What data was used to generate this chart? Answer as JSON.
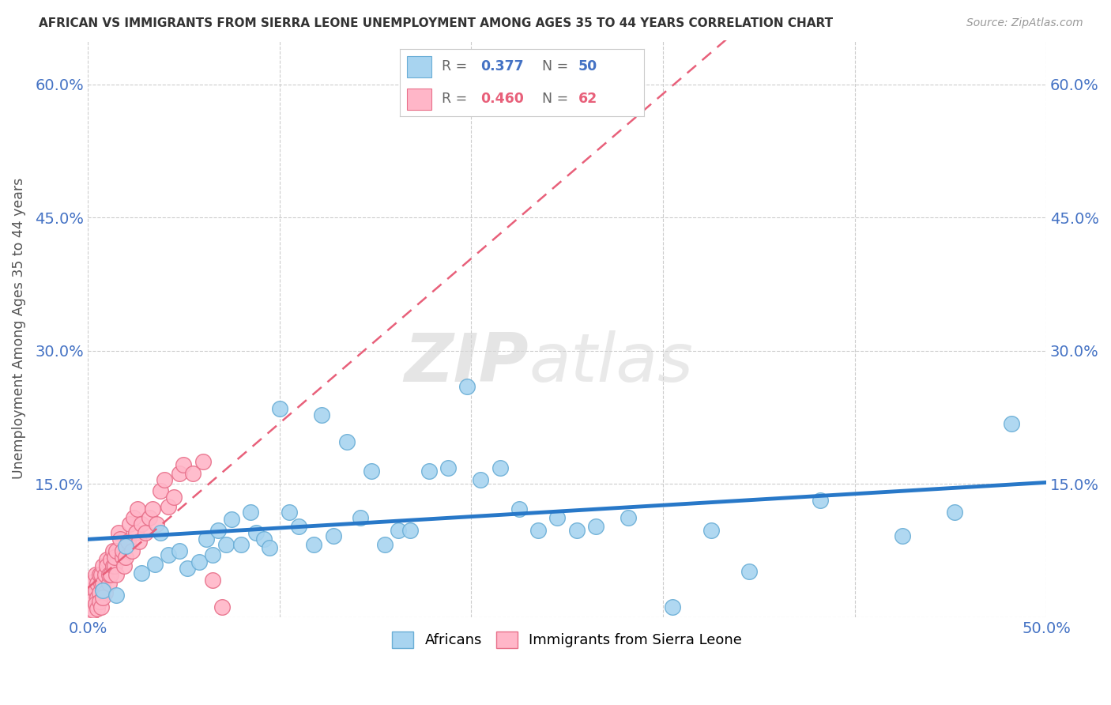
{
  "title": "AFRICAN VS IMMIGRANTS FROM SIERRA LEONE UNEMPLOYMENT AMONG AGES 35 TO 44 YEARS CORRELATION CHART",
  "source": "Source: ZipAtlas.com",
  "ylabel": "Unemployment Among Ages 35 to 44 years",
  "xlim": [
    0.0,
    0.5
  ],
  "ylim": [
    0.0,
    0.65
  ],
  "xticks": [
    0.0,
    0.1,
    0.2,
    0.3,
    0.4,
    0.5
  ],
  "xtick_labels": [
    "0.0%",
    "",
    "",
    "",
    "",
    "50.0%"
  ],
  "yticks": [
    0.0,
    0.15,
    0.3,
    0.45,
    0.6
  ],
  "ytick_labels": [
    "",
    "15.0%",
    "30.0%",
    "45.0%",
    "60.0%"
  ],
  "africans_x": [
    0.008,
    0.015,
    0.02,
    0.028,
    0.035,
    0.038,
    0.042,
    0.048,
    0.052,
    0.058,
    0.062,
    0.065,
    0.068,
    0.072,
    0.075,
    0.08,
    0.085,
    0.088,
    0.092,
    0.095,
    0.1,
    0.105,
    0.11,
    0.118,
    0.122,
    0.128,
    0.135,
    0.142,
    0.148,
    0.155,
    0.162,
    0.168,
    0.178,
    0.188,
    0.198,
    0.205,
    0.215,
    0.225,
    0.235,
    0.245,
    0.255,
    0.265,
    0.282,
    0.305,
    0.325,
    0.345,
    0.382,
    0.425,
    0.452,
    0.482
  ],
  "africans_y": [
    0.03,
    0.025,
    0.08,
    0.05,
    0.06,
    0.095,
    0.07,
    0.075,
    0.055,
    0.062,
    0.088,
    0.07,
    0.098,
    0.082,
    0.11,
    0.082,
    0.118,
    0.095,
    0.088,
    0.078,
    0.235,
    0.118,
    0.102,
    0.082,
    0.228,
    0.092,
    0.198,
    0.112,
    0.165,
    0.082,
    0.098,
    0.098,
    0.165,
    0.168,
    0.26,
    0.155,
    0.168,
    0.122,
    0.098,
    0.112,
    0.098,
    0.102,
    0.112,
    0.012,
    0.098,
    0.052,
    0.132,
    0.092,
    0.118,
    0.218
  ],
  "sierraleone_x": [
    0.002,
    0.003,
    0.003,
    0.004,
    0.004,
    0.005,
    0.005,
    0.006,
    0.006,
    0.007,
    0.007,
    0.008,
    0.008,
    0.009,
    0.009,
    0.01,
    0.01,
    0.011,
    0.011,
    0.012,
    0.012,
    0.013,
    0.013,
    0.014,
    0.014,
    0.015,
    0.015,
    0.016,
    0.017,
    0.018,
    0.018,
    0.019,
    0.02,
    0.021,
    0.022,
    0.023,
    0.024,
    0.025,
    0.026,
    0.027,
    0.028,
    0.03,
    0.032,
    0.034,
    0.036,
    0.038,
    0.04,
    0.042,
    0.045,
    0.048,
    0.05,
    0.055,
    0.06,
    0.065,
    0.07,
    0.002,
    0.003,
    0.004,
    0.005,
    0.006,
    0.007,
    0.008
  ],
  "sierraleone_y": [
    0.03,
    0.02,
    0.04,
    0.048,
    0.03,
    0.038,
    0.022,
    0.028,
    0.048,
    0.038,
    0.048,
    0.058,
    0.038,
    0.048,
    0.028,
    0.065,
    0.058,
    0.038,
    0.048,
    0.065,
    0.048,
    0.058,
    0.075,
    0.058,
    0.068,
    0.048,
    0.075,
    0.095,
    0.088,
    0.068,
    0.075,
    0.058,
    0.068,
    0.085,
    0.105,
    0.075,
    0.112,
    0.095,
    0.122,
    0.085,
    0.105,
    0.095,
    0.112,
    0.122,
    0.105,
    0.142,
    0.155,
    0.125,
    0.135,
    0.162,
    0.172,
    0.162,
    0.175,
    0.042,
    0.012,
    0.005,
    0.008,
    0.015,
    0.01,
    0.018,
    0.012,
    0.022
  ],
  "africans_color": "#a8d4f0",
  "africans_edge_color": "#6aaed6",
  "sierraleone_color": "#ffb6c8",
  "sierraleone_edge_color": "#e8708a",
  "africans_line_color": "#2878c8",
  "sierraleone_line_color": "#e8607a",
  "africans_R": 0.377,
  "africans_N": 50,
  "sierraleone_R": 0.46,
  "sierraleone_N": 62,
  "watermark_zip": "ZIP",
  "watermark_atlas": "atlas",
  "background_color": "#ffffff",
  "grid_color": "#cccccc",
  "legend_africans_label": "Africans",
  "legend_sl_label": "Immigrants from Sierra Leone"
}
